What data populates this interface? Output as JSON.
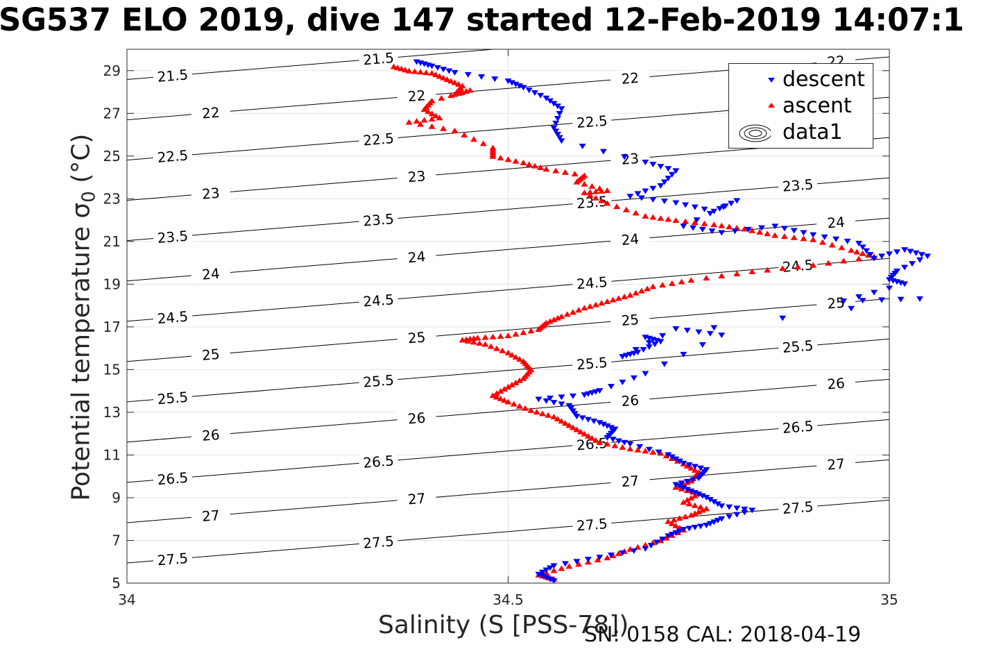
{
  "title": "SG537 ELO 2019, dive 147 started 12-Feb-2019 14:07:1",
  "footer": "SN: 0158  CAL: 2018-04-19",
  "chart_data": {
    "type": "scatter",
    "xlabel": "Salinity (S [PSS-78])",
    "ylabel": "Potential temperature σ",
    "ylabel_sub": "0",
    "ylabel_unit": "(°C)",
    "xlim": [
      34,
      35
    ],
    "ylim": [
      5,
      30
    ],
    "xticks": [
      34,
      34.5,
      35
    ],
    "xtick_labels": [
      "34",
      "34.5",
      "35"
    ],
    "yticks": [
      5,
      7,
      9,
      11,
      13,
      15,
      17,
      19,
      21,
      23,
      25,
      27,
      29
    ],
    "ytick_labels": [
      "5",
      "7",
      "9",
      "11",
      "13",
      "15",
      "17",
      "19",
      "21",
      "23",
      "25",
      "27",
      "29"
    ],
    "grid": true,
    "legend_position": "top-right",
    "legend": [
      "descent",
      "ascent",
      "data1"
    ],
    "colors": {
      "descent": "#0000ff",
      "ascent": "#ff0000",
      "contour": "#000000"
    },
    "contour_levels": [
      "21.5",
      "22",
      "22.5",
      "23",
      "23.5",
      "24",
      "24.5",
      "25",
      "25.5",
      "26",
      "26.5",
      "27",
      "27.5"
    ],
    "series": [
      {
        "name": "descent",
        "marker": "down-triangle",
        "points": [
          [
            34.38,
            29.4
          ],
          [
            34.4,
            29.2
          ],
          [
            34.43,
            28.9
          ],
          [
            34.5,
            28.5
          ],
          [
            34.52,
            28.2
          ],
          [
            34.55,
            27.7
          ],
          [
            34.57,
            27.2
          ],
          [
            34.56,
            26.3
          ],
          [
            34.57,
            25.7
          ],
          [
            34.68,
            24.7
          ],
          [
            34.72,
            24.3
          ],
          [
            34.7,
            23.6
          ],
          [
            34.66,
            23.1
          ],
          [
            34.72,
            22.8
          ],
          [
            34.77,
            22.4
          ],
          [
            34.8,
            22.9
          ],
          [
            34.73,
            21.7
          ],
          [
            34.78,
            21.4
          ],
          [
            34.85,
            21.7
          ],
          [
            34.9,
            21.3
          ],
          [
            34.96,
            20.9
          ],
          [
            34.98,
            20.2
          ],
          [
            35.02,
            20.6
          ],
          [
            35.05,
            20.3
          ],
          [
            35.01,
            19.6
          ],
          [
            35.0,
            19.2
          ],
          [
            35.02,
            19.0
          ],
          [
            34.94,
            18.2
          ],
          [
            35.04,
            18.3
          ],
          [
            34.68,
            16.5
          ],
          [
            34.7,
            16.3
          ],
          [
            34.67,
            15.8
          ],
          [
            34.65,
            15.6
          ],
          [
            34.72,
            16.9
          ],
          [
            34.78,
            16.6
          ],
          [
            34.68,
            14.8
          ],
          [
            34.62,
            14.0
          ],
          [
            34.6,
            13.8
          ],
          [
            34.54,
            13.6
          ],
          [
            34.58,
            13.3
          ],
          [
            34.59,
            12.8
          ],
          [
            34.62,
            12.5
          ],
          [
            34.64,
            12.2
          ],
          [
            34.63,
            11.8
          ],
          [
            34.66,
            11.5
          ],
          [
            34.71,
            11.0
          ],
          [
            34.73,
            10.6
          ],
          [
            34.76,
            10.3
          ],
          [
            34.75,
            9.9
          ],
          [
            34.72,
            9.6
          ],
          [
            34.74,
            9.3
          ],
          [
            34.76,
            9.0
          ],
          [
            34.78,
            8.6
          ],
          [
            34.82,
            8.4
          ],
          [
            34.78,
            8.0
          ],
          [
            34.76,
            7.7
          ],
          [
            34.73,
            7.5
          ],
          [
            34.71,
            7.2
          ],
          [
            34.68,
            6.6
          ],
          [
            34.62,
            6.2
          ],
          [
            34.56,
            5.8
          ],
          [
            34.54,
            5.4
          ],
          [
            34.56,
            5.1
          ]
        ]
      },
      {
        "name": "ascent",
        "marker": "up-triangle",
        "points": [
          [
            34.35,
            29.2
          ],
          [
            34.37,
            29.0
          ],
          [
            34.4,
            28.9
          ],
          [
            34.42,
            28.6
          ],
          [
            34.44,
            28.3
          ],
          [
            34.43,
            27.9
          ],
          [
            34.45,
            28.1
          ],
          [
            34.4,
            27.6
          ],
          [
            34.39,
            27.2
          ],
          [
            34.41,
            26.8
          ],
          [
            34.37,
            26.6
          ],
          [
            34.43,
            26.2
          ],
          [
            34.48,
            25.4
          ],
          [
            34.48,
            25.0
          ],
          [
            34.52,
            24.7
          ],
          [
            34.55,
            24.4
          ],
          [
            34.6,
            24.1
          ],
          [
            34.59,
            23.8
          ],
          [
            34.63,
            23.4
          ],
          [
            34.6,
            23.3
          ],
          [
            34.63,
            22.8
          ],
          [
            34.68,
            22.2
          ],
          [
            34.72,
            22.0
          ],
          [
            34.77,
            21.8
          ],
          [
            34.81,
            21.6
          ],
          [
            34.85,
            21.3
          ],
          [
            34.9,
            21.1
          ],
          [
            34.95,
            20.6
          ],
          [
            34.98,
            20.3
          ],
          [
            34.9,
            19.9
          ],
          [
            34.82,
            19.6
          ],
          [
            34.74,
            19.2
          ],
          [
            34.69,
            18.9
          ],
          [
            34.66,
            18.5
          ],
          [
            34.63,
            18.2
          ],
          [
            34.6,
            17.9
          ],
          [
            34.57,
            17.5
          ],
          [
            34.55,
            17.2
          ],
          [
            34.54,
            16.9
          ],
          [
            34.5,
            16.6
          ],
          [
            34.46,
            16.5
          ],
          [
            34.44,
            16.4
          ],
          [
            34.47,
            16.2
          ],
          [
            34.5,
            15.8
          ],
          [
            34.52,
            15.4
          ],
          [
            34.53,
            15.0
          ],
          [
            34.52,
            14.6
          ],
          [
            34.5,
            14.2
          ],
          [
            34.48,
            13.8
          ],
          [
            34.5,
            13.5
          ],
          [
            34.53,
            13.1
          ],
          [
            34.56,
            12.8
          ],
          [
            34.58,
            12.4
          ],
          [
            34.6,
            12.0
          ],
          [
            34.62,
            11.6
          ],
          [
            34.66,
            11.3
          ],
          [
            34.7,
            11.1
          ],
          [
            34.73,
            10.6
          ],
          [
            34.75,
            10.2
          ],
          [
            34.74,
            9.8
          ],
          [
            34.72,
            9.5
          ],
          [
            34.75,
            9.2
          ],
          [
            34.73,
            8.8
          ],
          [
            34.76,
            8.5
          ],
          [
            34.74,
            8.2
          ],
          [
            34.71,
            7.9
          ],
          [
            34.73,
            7.5
          ],
          [
            34.7,
            7.0
          ],
          [
            34.66,
            6.6
          ],
          [
            34.63,
            6.2
          ],
          [
            34.58,
            5.8
          ],
          [
            34.54,
            5.4
          ],
          [
            34.56,
            5.2
          ]
        ]
      }
    ]
  }
}
